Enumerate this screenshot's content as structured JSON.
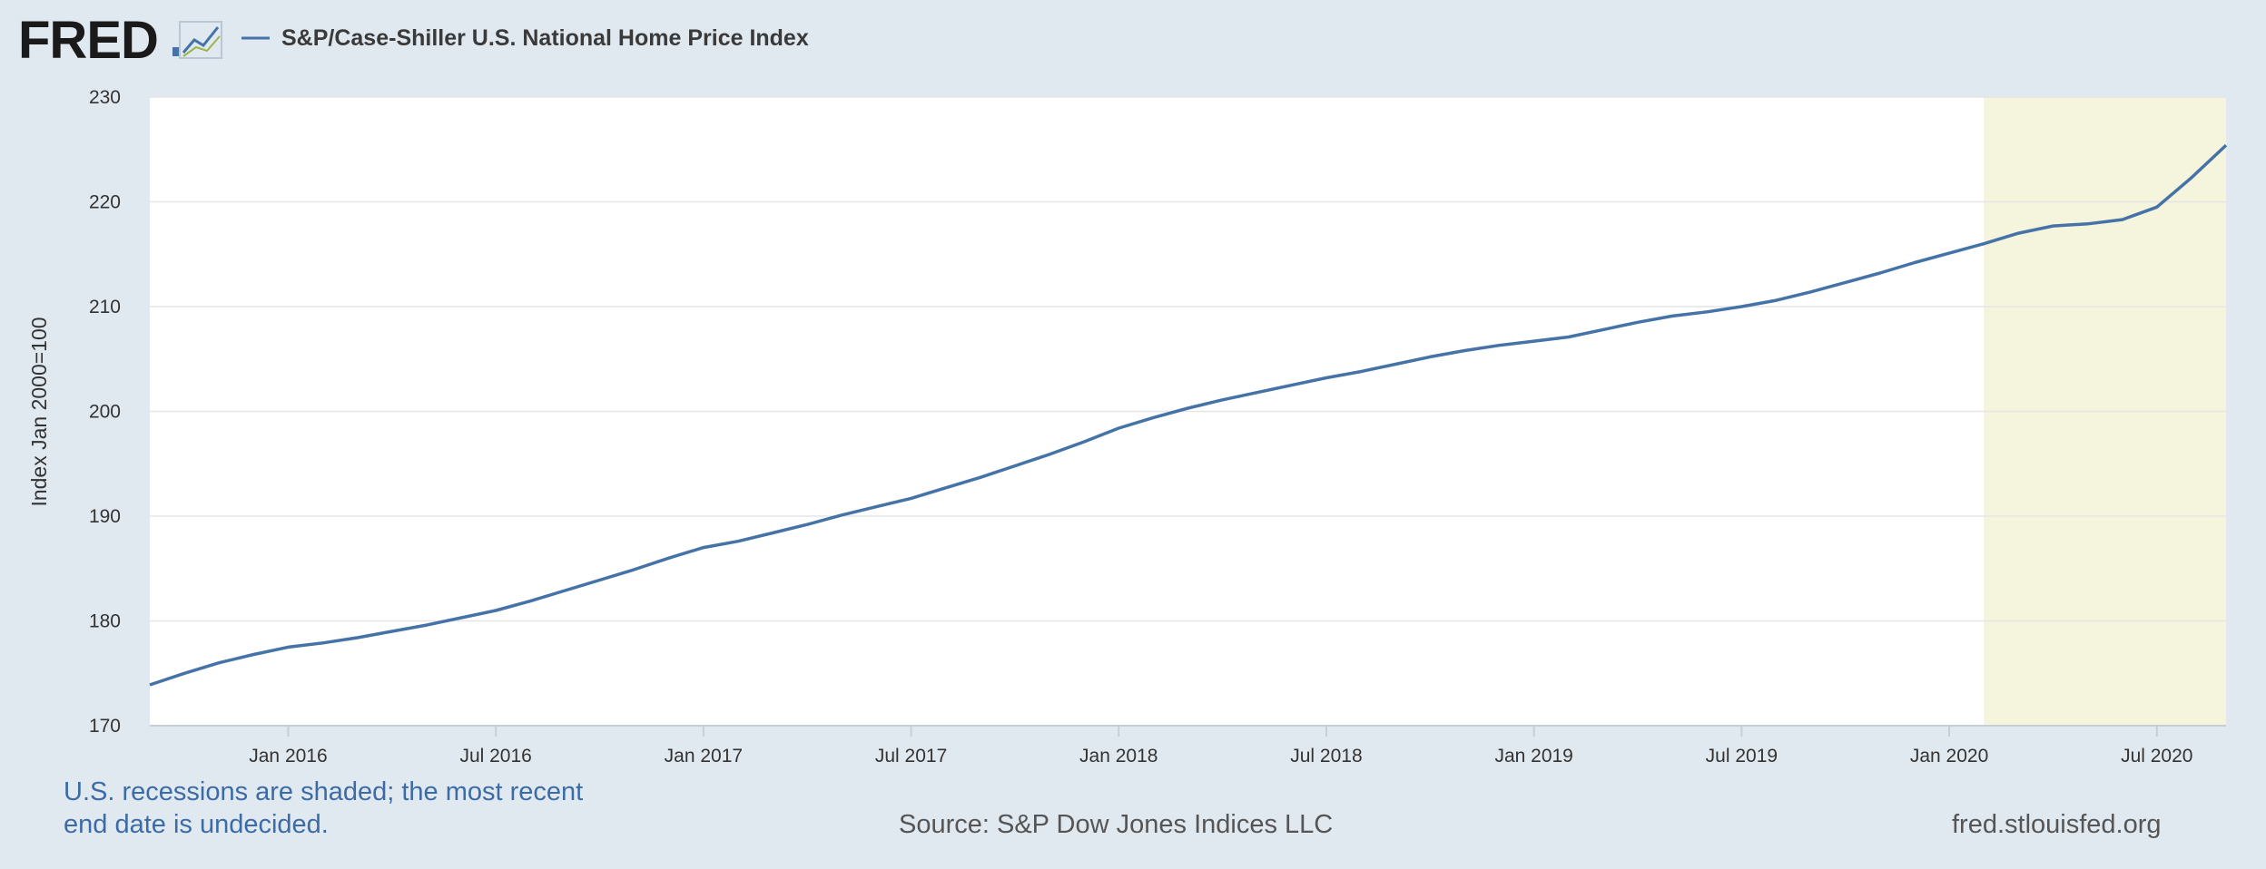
{
  "logo": {
    "text": "FRED",
    "icon": "fred-chart-icon"
  },
  "chart_data": {
    "type": "line",
    "title": "",
    "legend": [
      "S&P/Case-Shiller U.S. National Home Price Index"
    ],
    "legend_placement": "top-left",
    "ylabel": "Index Jan 2000=100",
    "xlabel": "",
    "ylim": [
      170,
      230
    ],
    "xlim": [
      "2015-09",
      "2020-09"
    ],
    "y_ticks": [
      170,
      180,
      190,
      200,
      210,
      220,
      230
    ],
    "x_ticks": [
      {
        "date": "2016-01",
        "label": "Jan 2016"
      },
      {
        "date": "2016-07",
        "label": "Jul 2016"
      },
      {
        "date": "2017-01",
        "label": "Jan 2017"
      },
      {
        "date": "2017-07",
        "label": "Jul 2017"
      },
      {
        "date": "2018-01",
        "label": "Jan 2018"
      },
      {
        "date": "2018-07",
        "label": "Jul 2018"
      },
      {
        "date": "2019-01",
        "label": "Jan 2019"
      },
      {
        "date": "2019-07",
        "label": "Jul 2019"
      },
      {
        "date": "2020-01",
        "label": "Jan 2020"
      },
      {
        "date": "2020-07",
        "label": "Jul 2020"
      }
    ],
    "grid": true,
    "recession_shading": {
      "start": "2020-02",
      "end": "2020-09"
    },
    "colors": {
      "line": "#4572a7",
      "recession": "#f5f4dc",
      "plot_bg": "#ffffff",
      "grid": "#e6e6e6"
    },
    "series": [
      {
        "name": "S&P/Case-Shiller U.S. National Home Price Index",
        "x": [
          "2015-09",
          "2015-10",
          "2015-11",
          "2015-12",
          "2016-01",
          "2016-02",
          "2016-03",
          "2016-04",
          "2016-05",
          "2016-06",
          "2016-07",
          "2016-08",
          "2016-09",
          "2016-10",
          "2016-11",
          "2016-12",
          "2017-01",
          "2017-02",
          "2017-03",
          "2017-04",
          "2017-05",
          "2017-06",
          "2017-07",
          "2017-08",
          "2017-09",
          "2017-10",
          "2017-11",
          "2017-12",
          "2018-01",
          "2018-02",
          "2018-03",
          "2018-04",
          "2018-05",
          "2018-06",
          "2018-07",
          "2018-08",
          "2018-09",
          "2018-10",
          "2018-11",
          "2018-12",
          "2019-01",
          "2019-02",
          "2019-03",
          "2019-04",
          "2019-05",
          "2019-06",
          "2019-07",
          "2019-08",
          "2019-09",
          "2019-10",
          "2019-11",
          "2019-12",
          "2020-01",
          "2020-02",
          "2020-03",
          "2020-04",
          "2020-05",
          "2020-06",
          "2020-07",
          "2020-08",
          "2020-09"
        ],
        "values": [
          173.9,
          175.0,
          176.0,
          176.8,
          177.5,
          177.9,
          178.4,
          179.0,
          179.6,
          180.3,
          181.0,
          181.9,
          182.9,
          183.9,
          184.9,
          186.0,
          187.0,
          187.6,
          188.4,
          189.2,
          190.1,
          190.9,
          191.7,
          192.7,
          193.7,
          194.8,
          195.9,
          197.1,
          198.4,
          199.4,
          200.3,
          201.1,
          201.8,
          202.5,
          203.2,
          203.8,
          204.5,
          205.2,
          205.8,
          206.3,
          206.7,
          207.1,
          207.8,
          208.5,
          209.1,
          209.5,
          210.0,
          210.6,
          211.4,
          212.3,
          213.2,
          214.2,
          215.1,
          216.0,
          217.0,
          217.7,
          217.9,
          218.3,
          219.5,
          222.3,
          225.4
        ]
      }
    ]
  },
  "footer": {
    "note_line1": "U.S. recessions are shaded; the most recent",
    "note_line2": "end date is undecided.",
    "source": "Source: S&P Dow Jones Indices LLC",
    "site": "fred.stlouisfed.org"
  }
}
